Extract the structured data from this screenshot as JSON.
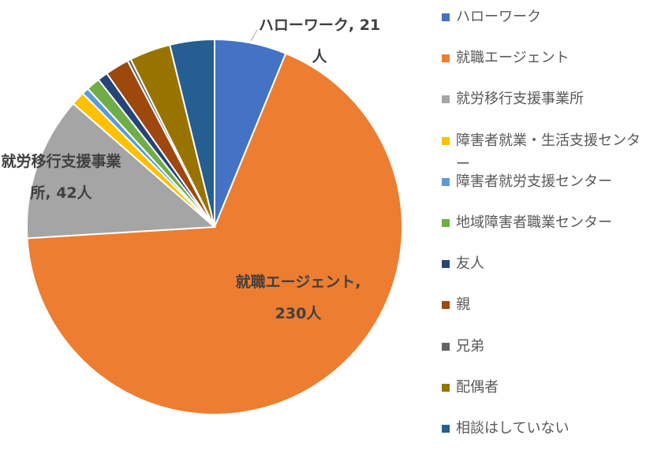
{
  "chart_data": {
    "type": "pie",
    "categories": [
      "ハローワーク",
      "就職エージェント",
      "就労移行支援事業所",
      "障害者就業・生活支援センター",
      "障害者就労支援センター",
      "地域障害者職業センター",
      "友人",
      "親",
      "兄弟",
      "配偶者",
      "相談はしていない"
    ],
    "values": [
      21,
      230,
      42,
      4,
      2,
      4,
      3,
      7,
      1,
      12,
      13
    ],
    "value_labels": [
      "ハローワーク, 21人",
      "就職エージェント, 230人",
      "就労移行支援事業所, 42人",
      null,
      null,
      null,
      null,
      null,
      null,
      null,
      null
    ],
    "colors": [
      "#4472c4",
      "#ed7d31",
      "#a5a5a5",
      "#ffc000",
      "#5b9bd5",
      "#70ad47",
      "#264478",
      "#9e480e",
      "#636363",
      "#997300",
      "#255e91"
    ],
    "legend": "right"
  }
}
